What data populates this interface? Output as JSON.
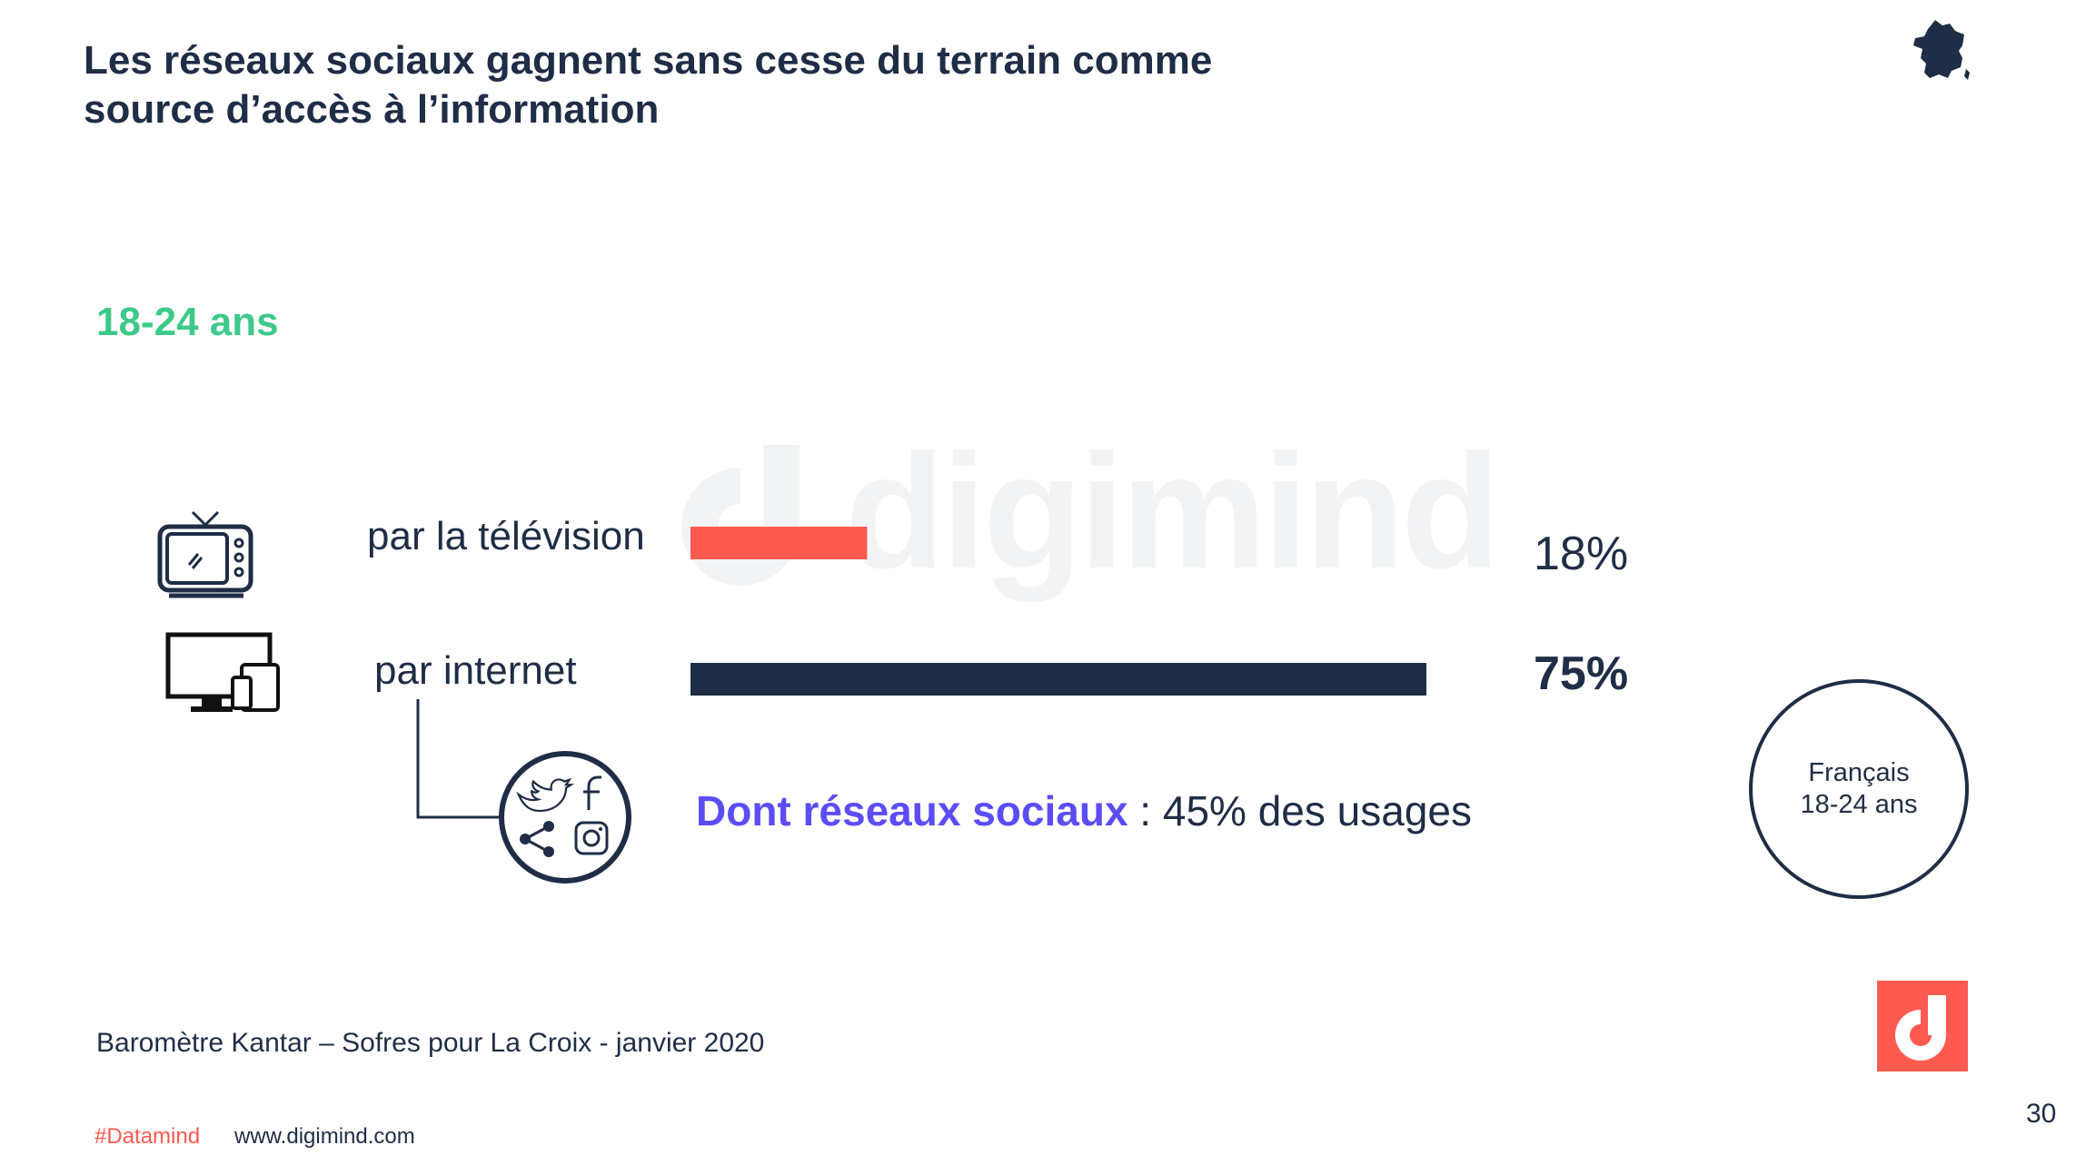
{
  "title": {
    "line1": "Les réseaux sociaux gagnent sans cesse du terrain comme",
    "line2": "source d’accès à l’information"
  },
  "age_group": "18-24 ans",
  "watermark": "digimind",
  "chart_data": {
    "type": "bar",
    "orientation": "horizontal",
    "categories": [
      "par la télévision",
      "par internet"
    ],
    "values": [
      18,
      75
    ],
    "value_labels": [
      "18%",
      "75%"
    ],
    "xlim": [
      0,
      100
    ],
    "series": [
      {
        "values": [
          18,
          75
        ],
        "colors": [
          "#ff5a50",
          "#1f2d46"
        ]
      }
    ],
    "annotation": {
      "strong": "Dont réseaux sociaux",
      "rest": " : 45% des usages",
      "value": 45
    }
  },
  "bubble": {
    "line1": "Français",
    "line2": "18-24 ans"
  },
  "source": "Baromètre Kantar – Sofres pour La Croix  - janvier 2020",
  "footer": {
    "hashtag": "#Datamind",
    "url": "www.digimind.com"
  },
  "page_number": "30",
  "icons": {
    "tv": "television-icon",
    "devices": "devices-icon",
    "social": "social-networks-icon",
    "france": "france-map-icon",
    "logo": "digimind-logo-icon"
  },
  "colors": {
    "navy": "#1f2d46",
    "coral": "#ff5a50",
    "green": "#3ec98a",
    "purple": "#5b4df5"
  }
}
